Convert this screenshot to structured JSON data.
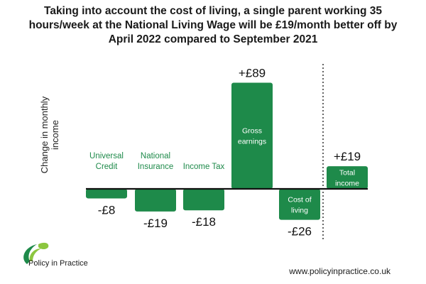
{
  "title": "Taking into account the cost of living, a single parent working 35 hours/week at the National Living Wage will be £19/month better off by April 2022 compared to September 2021",
  "chart_data": {
    "type": "bar",
    "subtype": "waterfall",
    "ylabel": "Change in monthly income",
    "categories": [
      "Universal Credit",
      "National Insurance",
      "Income Tax",
      "Gross earnings",
      "Cost of living",
      "Total income"
    ],
    "values": [
      -8,
      -19,
      -18,
      89,
      -26,
      19
    ],
    "value_labels": [
      "-£8",
      "-£19",
      "-£18",
      "+£89",
      "-£26",
      "+£19"
    ],
    "label_position": [
      "above",
      "above",
      "above",
      "inside",
      "inside",
      "inside"
    ],
    "separator_before": "Total income",
    "baseline": 0
  },
  "colors": {
    "bar": "#1e8a4a",
    "bar_label_outside": "#1e8a4a",
    "bar_label_inside": "#ffffff",
    "axis": "#111111"
  },
  "logo": {
    "text": "Policy in Practice",
    "icon": "leaf-swoosh-icon"
  },
  "website": "www.policyinpractice.co.uk"
}
